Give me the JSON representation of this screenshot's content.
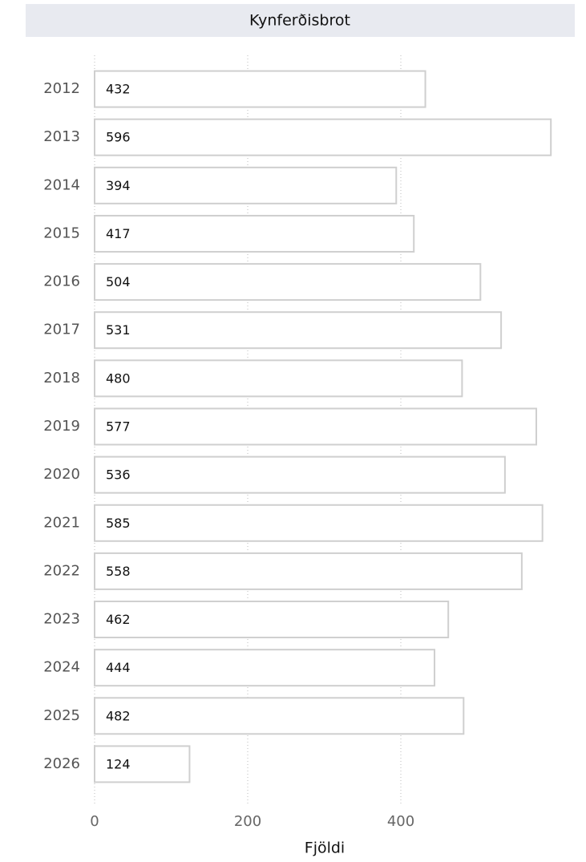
{
  "chart_data": {
    "type": "bar",
    "orientation": "horizontal",
    "title": "Kynferðisbrot",
    "xlabel": "Fjöldi",
    "categories": [
      "2012",
      "2013",
      "2014",
      "2015",
      "2016",
      "2017",
      "2018",
      "2019",
      "2020",
      "2021",
      "2022",
      "2023",
      "2024",
      "2025",
      "2026"
    ],
    "values": [
      432,
      596,
      394,
      417,
      504,
      531,
      480,
      577,
      536,
      585,
      558,
      462,
      444,
      482,
      124
    ],
    "color": "#ffffff",
    "xlim": [
      0,
      600
    ],
    "xticks": [
      0,
      200,
      400
    ],
    "grid": true
  }
}
